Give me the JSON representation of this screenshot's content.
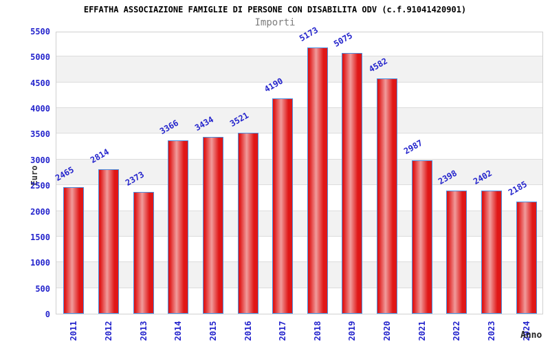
{
  "chart_data": {
    "type": "bar",
    "title": "EFFATHA ASSOCIAZIONE FAMIGLIE DI PERSONE CON DISABILITA ODV (c.f.91041420901)",
    "subtitle": "Importi",
    "xlabel": "Anno",
    "ylabel": "Euro",
    "categories": [
      "2011",
      "2012",
      "2013",
      "2014",
      "2015",
      "2016",
      "2017",
      "2018",
      "2019",
      "2020",
      "2021",
      "2022",
      "2023",
      "2024"
    ],
    "values": [
      2465,
      2814,
      2373,
      3366,
      3434,
      3521,
      4190,
      5173,
      5075,
      4582,
      2987,
      2398,
      2402,
      2185
    ],
    "ylim": [
      0,
      5500
    ],
    "ytick_step": 500,
    "yticks": [
      0,
      500,
      1000,
      1500,
      2000,
      2500,
      3000,
      3500,
      4000,
      4500,
      5000,
      5500
    ],
    "grid": "horizontal",
    "legend_position": "none",
    "colors": {
      "label_blue": "#2424cc",
      "bar_edge_red": "#e01717",
      "bar_center_light": "#f09b9b",
      "bar_border_blue": "#4a8fe0",
      "band_gray": "#f2f2f2",
      "grid_gray": "#dcdcdc",
      "plot_border_gray": "#d0d0d0",
      "title_black": "#000000",
      "subtitle_gray": "#7d7d7d",
      "axis_title_dark": "#333333"
    }
  }
}
